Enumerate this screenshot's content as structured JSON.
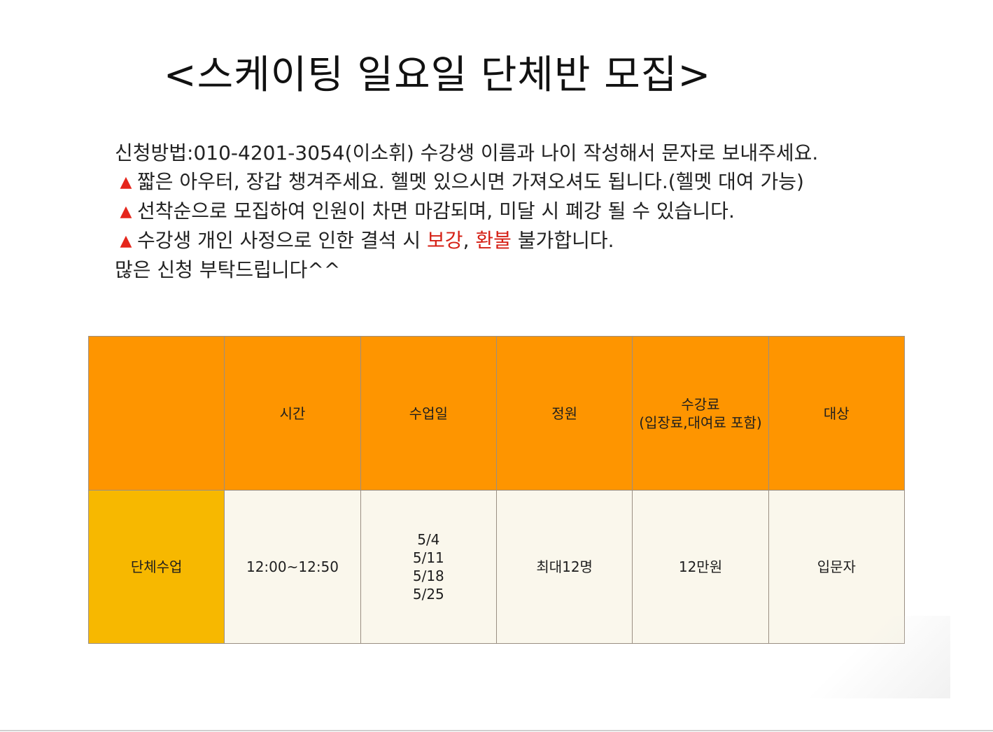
{
  "title": "<스케이팅 일요일 단체반 모집>",
  "notice": {
    "line1": "신청방법:010-4201-3054(이소휘) 수강생 이름과 나이 작성해서 문자로 보내주세요.",
    "bullet_icon": "red-triangle-icon",
    "line2": "짧은 아우터, 장갑 챙겨주세요. 헬멧 있으시면 가져오셔도 됩니다.(헬멧 대여 가능)",
    "line3": "선착순으로 모집하여 인원이 차면 마감되며, 미달 시 폐강 될 수 있습니다.",
    "line4_before": "수강생 개인 사정으로 인한 결석 시 ",
    "line4_red1": "보강",
    "line4_comma": ", ",
    "line4_red2": "환불",
    "line4_after": " 불가합니다.",
    "line5": "많은 신청 부탁드립니다^^",
    "triangle_glyph": "▲"
  },
  "colors": {
    "header_orange": "#fe9500",
    "label_yellow": "#f7b800",
    "body_cream": "#faf7ec",
    "highlight_red": "#d51f14"
  },
  "table": {
    "headers": {
      "col0": "",
      "time": "시간",
      "class_days": "수업일",
      "capacity": "정원",
      "fee_line1": "수강료",
      "fee_line2": "(입장료,대여료 포함)",
      "target": "대상"
    },
    "row": {
      "label": "단체수업",
      "time": "12:00~12:50",
      "days": [
        "5/4",
        "5/11",
        "5/18",
        "5/25"
      ],
      "capacity": "최대12명",
      "fee": "12만원",
      "target": "입문자"
    }
  }
}
